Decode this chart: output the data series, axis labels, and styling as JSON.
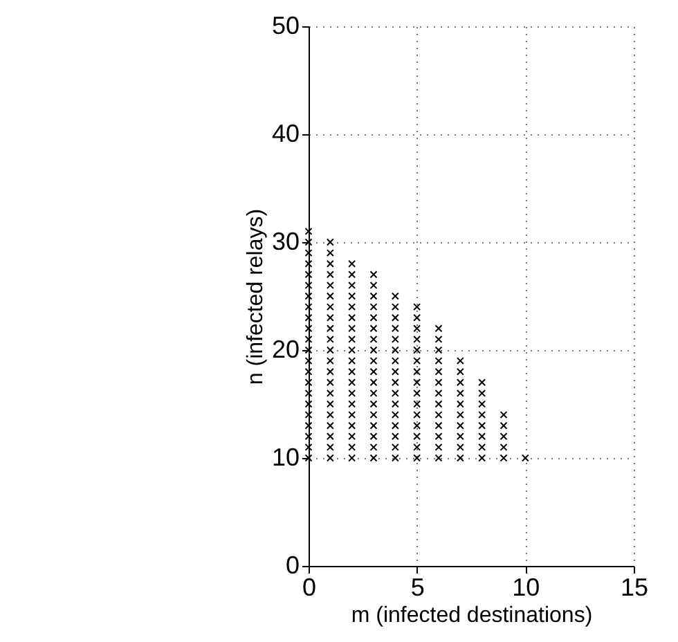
{
  "chart_data": {
    "type": "scatter",
    "xlabel": "m (infected destinations)",
    "ylabel": "n (infected relays)",
    "series": [
      {
        "color": "#000000",
        "x": [
          0,
          0,
          0,
          0,
          0,
          0,
          0,
          0,
          0,
          0,
          0,
          0,
          0,
          0,
          0,
          0,
          0,
          0,
          0,
          0,
          0,
          0,
          1,
          1,
          1,
          1,
          1,
          1,
          1,
          1,
          1,
          1,
          1,
          1,
          1,
          1,
          1,
          1,
          1,
          1,
          1,
          1,
          1,
          2,
          2,
          2,
          2,
          2,
          2,
          2,
          2,
          2,
          2,
          2,
          2,
          2,
          2,
          2,
          2,
          2,
          2,
          2,
          3,
          3,
          3,
          3,
          3,
          3,
          3,
          3,
          3,
          3,
          3,
          3,
          3,
          3,
          3,
          3,
          3,
          3,
          4,
          4,
          4,
          4,
          4,
          4,
          4,
          4,
          4,
          4,
          4,
          4,
          4,
          4,
          4,
          4,
          5,
          5,
          5,
          5,
          5,
          5,
          5,
          5,
          5,
          5,
          5,
          5,
          5,
          5,
          5,
          6,
          6,
          6,
          6,
          6,
          6,
          6,
          6,
          6,
          6,
          6,
          6,
          6,
          7,
          7,
          7,
          7,
          7,
          7,
          7,
          7,
          7,
          7,
          8,
          8,
          8,
          8,
          8,
          8,
          8,
          8,
          9,
          9,
          9,
          9,
          9,
          10
        ],
        "values": [
          10,
          11,
          12,
          13,
          14,
          15,
          16,
          17,
          18,
          19,
          20,
          21,
          22,
          23,
          24,
          25,
          26,
          27,
          28,
          29,
          30,
          31,
          10,
          11,
          12,
          13,
          14,
          15,
          16,
          17,
          18,
          19,
          20,
          21,
          22,
          23,
          24,
          25,
          26,
          27,
          28,
          29,
          30,
          10,
          11,
          12,
          13,
          14,
          15,
          16,
          17,
          18,
          19,
          20,
          21,
          22,
          23,
          24,
          25,
          26,
          27,
          28,
          10,
          11,
          12,
          13,
          14,
          15,
          16,
          17,
          18,
          19,
          20,
          21,
          22,
          23,
          24,
          25,
          26,
          27,
          10,
          11,
          12,
          13,
          14,
          15,
          16,
          17,
          18,
          19,
          20,
          21,
          22,
          23,
          24,
          25,
          10,
          11,
          12,
          13,
          14,
          15,
          16,
          17,
          18,
          19,
          20,
          21,
          22,
          23,
          24,
          10,
          11,
          12,
          13,
          14,
          15,
          16,
          17,
          18,
          19,
          20,
          21,
          22,
          10,
          11,
          12,
          13,
          14,
          15,
          16,
          17,
          18,
          19,
          10,
          11,
          12,
          13,
          14,
          15,
          16,
          17,
          10,
          11,
          12,
          13,
          14,
          10
        ]
      }
    ],
    "xlim": [
      0,
      15
    ],
    "ylim": [
      0,
      50
    ],
    "xticks": [
      0,
      5,
      10,
      15
    ],
    "yticks": [
      0,
      10,
      20,
      30,
      40,
      50
    ],
    "grid": true,
    "marker": "cross"
  }
}
